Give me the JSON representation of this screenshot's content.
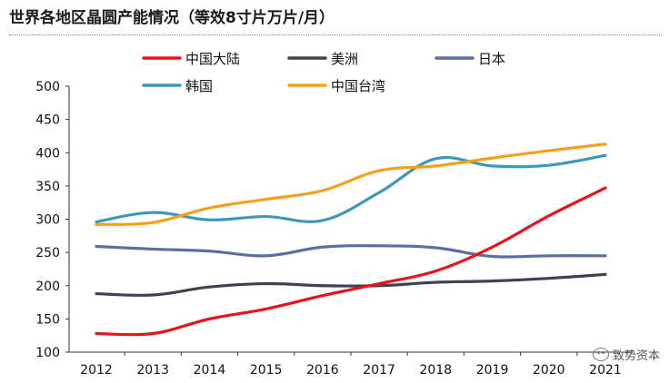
{
  "chart_data": {
    "type": "line",
    "title": "世界各地区晶圆产能情况（等效8寸片万片/月）",
    "x": [
      "2012",
      "2013",
      "2014",
      "2015",
      "2016",
      "2017",
      "2018",
      "2019",
      "2020",
      "2021"
    ],
    "ylim": [
      100,
      500
    ],
    "yticks": [
      100,
      150,
      200,
      250,
      300,
      350,
      400,
      450,
      500
    ],
    "grid": false,
    "legend_placement": "top",
    "series": [
      {
        "name": "中国大陆",
        "color": "#e8141c",
        "values": [
          128,
          128,
          150,
          165,
          185,
          203,
          222,
          258,
          305,
          347
        ]
      },
      {
        "name": "美洲",
        "color": "#3d4250",
        "values": [
          188,
          186,
          198,
          203,
          200,
          200,
          205,
          207,
          211,
          217
        ]
      },
      {
        "name": "日本",
        "color": "#5a6e9f",
        "values": [
          259,
          255,
          252,
          245,
          258,
          260,
          257,
          244,
          245,
          245
        ]
      },
      {
        "name": "韩国",
        "color": "#3f97b7",
        "values": [
          296,
          310,
          299,
          304,
          298,
          340,
          391,
          380,
          381,
          396
        ]
      },
      {
        "name": "中国台湾",
        "color": "#f5a01a",
        "values": [
          292,
          295,
          317,
          330,
          343,
          373,
          380,
          392,
          403,
          413
        ]
      }
    ]
  },
  "watermark": {
    "text": "致势资本",
    "icon": "chat-bubble-icon"
  }
}
